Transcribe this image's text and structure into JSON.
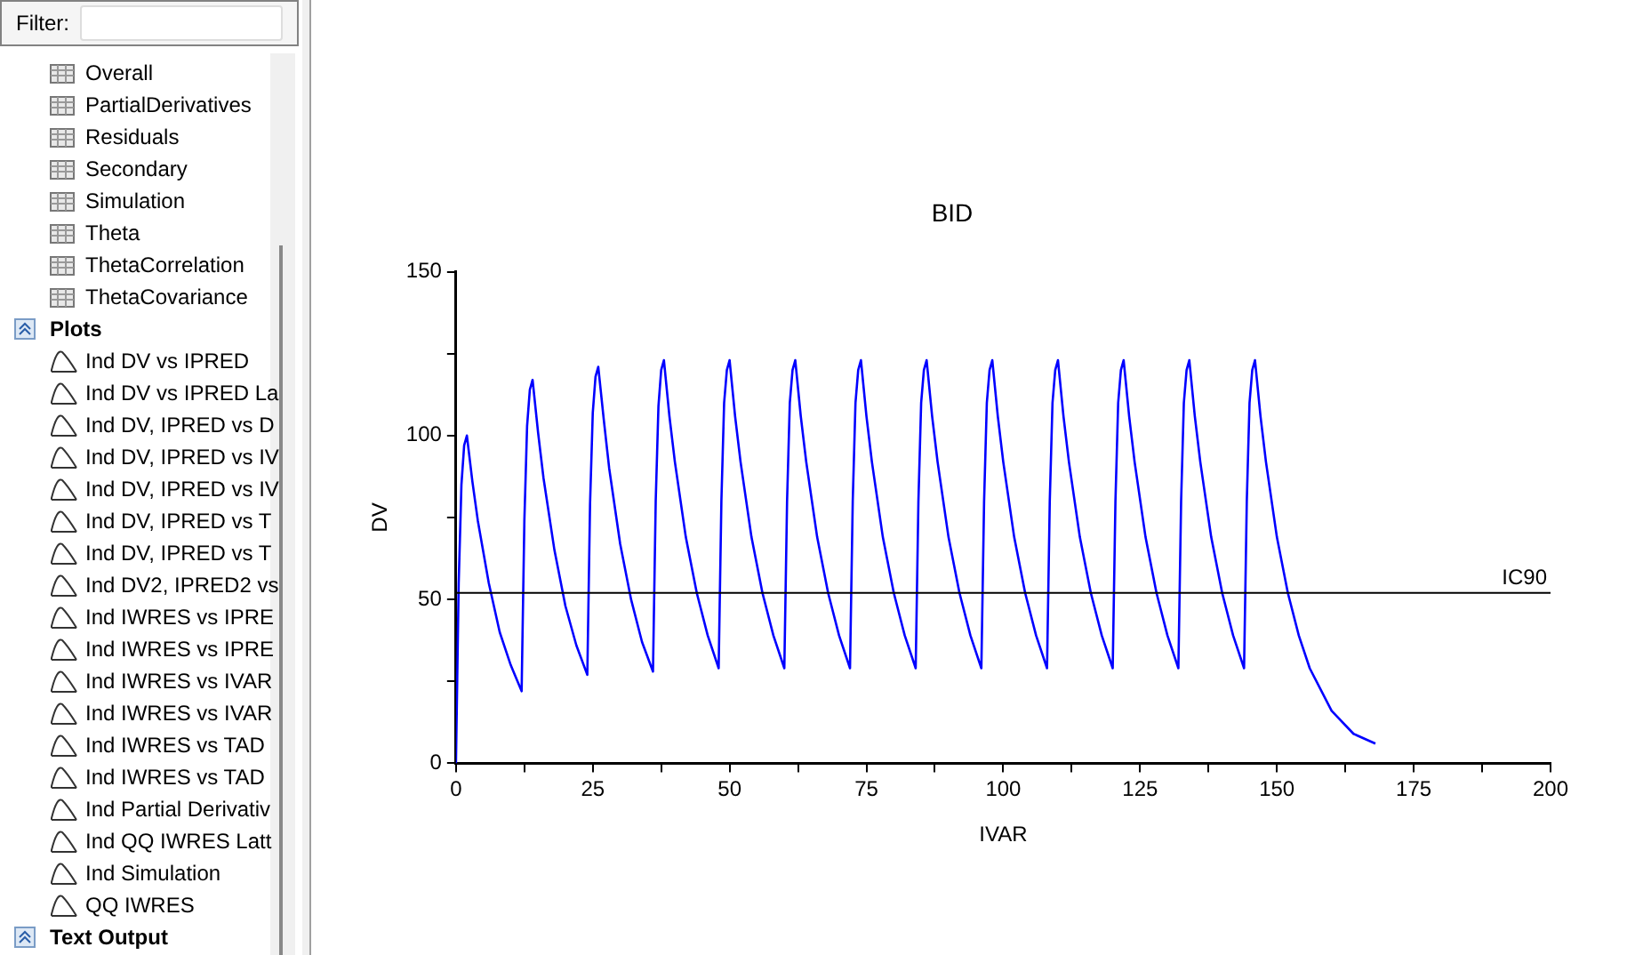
{
  "chart_data": [
    {
      "type": "line",
      "title": "BID",
      "xlabel": "IVAR",
      "ylabel": "DV",
      "grid": false,
      "legend": false,
      "marker": "none",
      "line_style": "solid",
      "xlim": [
        0,
        200
      ],
      "ylim": [
        0,
        150
      ],
      "xticks": [
        0,
        {
          "value": 12.5,
          "label": null
        },
        25,
        {
          "value": 37.5,
          "label": null
        },
        50,
        {
          "value": 62.5,
          "label": null
        },
        75,
        {
          "value": 87.5,
          "label": null
        },
        100,
        {
          "value": 112.5,
          "label": null
        },
        125,
        {
          "value": 137.5,
          "label": null
        },
        150,
        {
          "value": 162.5,
          "label": null
        },
        175,
        {
          "value": 187.5,
          "label": null
        },
        200
      ],
      "yticks": [
        0,
        {
          "value": 25,
          "label": null
        },
        50,
        {
          "value": 75,
          "label": null
        },
        100,
        {
          "value": 125,
          "label": null
        },
        150
      ],
      "ref_lines": [
        {
          "axis": "y",
          "value": 52,
          "label": "IC90",
          "color": "#000000"
        }
      ],
      "series": [
        {
          "color": "#0000ff",
          "x": [
            0,
            0.5,
            1,
            1.5,
            2,
            3,
            4,
            6,
            8,
            10,
            12,
            12.5,
            13,
            13.5,
            14,
            15,
            16,
            18,
            20,
            22,
            24,
            24.5,
            25,
            25.5,
            26,
            27,
            28,
            30,
            32,
            34,
            36,
            36.5,
            37,
            37.5,
            38,
            39,
            40,
            42,
            44,
            46,
            48,
            48.5,
            49,
            49.5,
            50,
            51,
            52,
            54,
            56,
            58,
            60,
            60.5,
            61,
            61.5,
            62,
            63,
            64,
            66,
            68,
            70,
            72,
            72.5,
            73,
            73.5,
            74,
            75,
            76,
            78,
            80,
            82,
            84,
            84.5,
            85,
            85.5,
            86,
            87,
            88,
            90,
            92,
            94,
            96,
            96.5,
            97,
            97.5,
            98,
            99,
            100,
            102,
            104,
            106,
            108,
            108.5,
            109,
            109.5,
            110,
            111,
            112,
            114,
            116,
            118,
            120,
            120.5,
            121,
            121.5,
            122,
            123,
            124,
            126,
            128,
            130,
            132,
            132.5,
            133,
            133.5,
            134,
            135,
            136,
            138,
            140,
            142,
            144,
            144.5,
            145,
            145.5,
            146,
            147,
            148,
            150,
            152,
            154,
            156,
            160,
            164,
            168
          ],
          "values": [
            0,
            55,
            85,
            97,
            100,
            86,
            74,
            55,
            40,
            30,
            22,
            74,
            103,
            114,
            117,
            101,
            87,
            65,
            48,
            36,
            27,
            79,
            107,
            118,
            121,
            105,
            90,
            67,
            50,
            37,
            28,
            80,
            109,
            120,
            123,
            106,
            92,
            69,
            52,
            39,
            29,
            80,
            110,
            120,
            123,
            106,
            92,
            69,
            52,
            39,
            29,
            80,
            110,
            120,
            123,
            106,
            92,
            69,
            52,
            39,
            29,
            80,
            110,
            120,
            123,
            106,
            92,
            69,
            52,
            39,
            29,
            80,
            110,
            120,
            123,
            106,
            92,
            69,
            52,
            39,
            29,
            80,
            110,
            120,
            123,
            106,
            92,
            69,
            52,
            39,
            29,
            80,
            110,
            120,
            123,
            106,
            92,
            69,
            52,
            39,
            29,
            80,
            110,
            120,
            123,
            106,
            92,
            69,
            52,
            39,
            29,
            80,
            110,
            120,
            123,
            106,
            92,
            69,
            52,
            39,
            29,
            80,
            110,
            120,
            123,
            106,
            92,
            69,
            52,
            39,
            29,
            16,
            9,
            6
          ]
        }
      ]
    },
    {
      "type": "other",
      "title": "Filter:",
      "annotations": [
        "Overall",
        "PartialDerivatives",
        "Residuals",
        "Secondary",
        "Simulation",
        "Theta",
        "ThetaCorrelation",
        "ThetaCovariance"
      ]
    },
    {
      "type": "other",
      "title": "Plots",
      "annotations": [
        "Ind DV vs IPRED",
        "Ind DV vs IPRED La",
        "Ind DV, IPRED vs D",
        "Ind DV, IPRED vs IV",
        "Ind DV, IPRED vs IV",
        "Ind DV, IPRED vs T",
        "Ind DV, IPRED vs T",
        "Ind DV2, IPRED2 vs",
        "Ind IWRES vs IPRE",
        "Ind IWRES vs IPRE",
        "Ind IWRES vs IVAR",
        "Ind IWRES vs IVAR",
        "Ind IWRES vs TAD",
        "Ind IWRES vs TAD",
        "Ind Partial Derivativ",
        "Ind QQ IWRES Latt",
        "Ind Simulation",
        "QQ IWRES"
      ]
    },
    {
      "type": "other",
      "title": "Text Output"
    }
  ]
}
